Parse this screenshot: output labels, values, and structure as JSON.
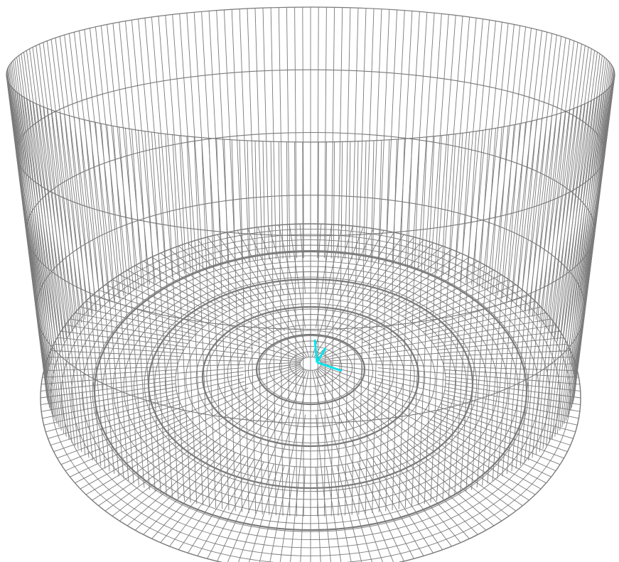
{
  "view": {
    "background_color": "#ffffff",
    "mesh_color": "#7a7a7a",
    "triad_color": "#00e5ee",
    "icons": {
      "model": "tank-mesh-icon",
      "axes": "coordinate-triad-icon"
    }
  },
  "model": {
    "wall_vertical_divisions": 240,
    "wall_horizontal_rings": 3,
    "base_radial_divisions": 160,
    "base_rings": 26,
    "base_stiffener_rings": 4
  }
}
